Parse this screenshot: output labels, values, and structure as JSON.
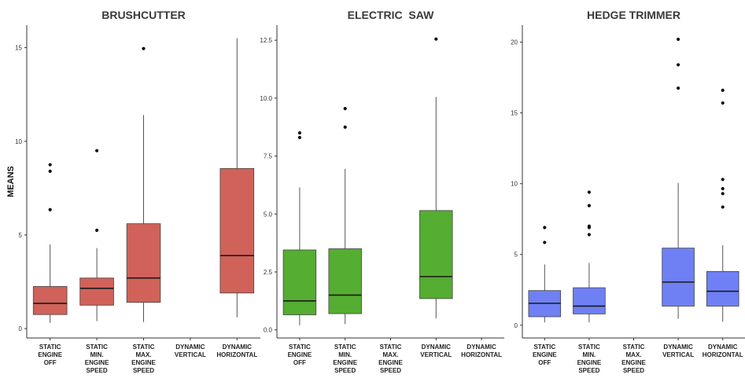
{
  "ylabel": "MEANS",
  "colors": {
    "brushcutter": "#d0625a",
    "electric_saw": "#55ad32",
    "hedge_trimmer": "#6f80f5",
    "axis": "#333333",
    "outlier": "#111111"
  },
  "chart_data": [
    {
      "type": "boxplot",
      "title": "BRUSHCUTTER",
      "ylabel": "MEANS",
      "ylim": [
        -0.5,
        16.2
      ],
      "yticks": [
        0,
        5,
        10,
        15
      ],
      "categories": [
        [
          "STATIC",
          "ENGINE",
          "OFF"
        ],
        [
          "STATIC",
          "MIN.",
          "ENGINE",
          "SPEED"
        ],
        [
          "STATIC",
          "MAX.",
          "ENGINE",
          "SPEED"
        ],
        [
          "DYNAMIC",
          "VERTICAL"
        ],
        [
          "DYNAMIC",
          "HORIZONTAL"
        ]
      ],
      "boxes": [
        {
          "min": 0.3,
          "q1": 0.75,
          "median": 1.35,
          "q3": 2.25,
          "max": 4.5,
          "outliers": [
            6.35,
            8.4,
            8.75
          ]
        },
        {
          "min": 0.4,
          "q1": 1.25,
          "median": 2.15,
          "q3": 2.7,
          "max": 4.3,
          "outliers": [
            5.25,
            9.5
          ]
        },
        {
          "min": 0.35,
          "q1": 1.4,
          "median": 2.7,
          "q3": 5.6,
          "max": 11.4,
          "outliers": [
            14.95
          ]
        },
        null,
        {
          "min": 0.6,
          "q1": 1.9,
          "median": 3.9,
          "q3": 8.55,
          "max": 15.5,
          "outliers": []
        }
      ]
    },
    {
      "type": "boxplot",
      "title": "ELECTRIC  SAW",
      "ylim": [
        -0.35,
        13.15
      ],
      "yticks": [
        0.0,
        2.5,
        5.0,
        7.5,
        10.0,
        12.5
      ],
      "ytick_labels": [
        "0.0",
        "2.5",
        "5.0",
        "7.5",
        "10.0",
        "12.5"
      ],
      "categories": [
        [
          "STATIC",
          "ENGINE",
          "OFF"
        ],
        [
          "STATIC",
          "MIN.",
          "ENGINE",
          "SPEED"
        ],
        [
          "STATIC",
          "MAX.",
          "ENGINE",
          "SPEED"
        ],
        [
          "DYNAMIC",
          "VERTICAL"
        ],
        [
          "DYNAMIC",
          "HORIZONTAL"
        ]
      ],
      "boxes": [
        {
          "min": 0.2,
          "q1": 0.65,
          "median": 1.25,
          "q3": 3.45,
          "max": 6.15,
          "outliers": [
            8.3,
            8.5
          ]
        },
        {
          "min": 0.25,
          "q1": 0.7,
          "median": 1.5,
          "q3": 3.5,
          "max": 6.95,
          "outliers": [
            8.75,
            9.55
          ]
        },
        null,
        {
          "min": 0.5,
          "q1": 1.35,
          "median": 2.3,
          "q3": 5.15,
          "max": 10.05,
          "outliers": [
            12.55
          ]
        },
        null
      ]
    },
    {
      "type": "boxplot",
      "title": "HEDGE TRIMMER",
      "ylim": [
        -0.9,
        21.2
      ],
      "yticks": [
        0,
        5,
        10,
        15,
        20
      ],
      "categories": [
        [
          "STATIC",
          "ENGINE",
          "OFF"
        ],
        [
          "STATIC",
          "MIN.",
          "ENGINE",
          "SPEED"
        ],
        [
          "STATIC",
          "MAX.",
          "ENGINE",
          "SPEED"
        ],
        [
          "DYNAMIC",
          "VERTICAL"
        ],
        [
          "DYNAMIC",
          "HORIZONTAL"
        ]
      ],
      "boxes": [
        {
          "min": 0.2,
          "q1": 0.6,
          "median": 1.55,
          "q3": 2.45,
          "max": 4.3,
          "outliers": [
            5.85,
            6.9
          ]
        },
        {
          "min": 0.2,
          "q1": 0.8,
          "median": 1.35,
          "q3": 2.65,
          "max": 4.4,
          "outliers": [
            6.4,
            6.9,
            7.0,
            8.45,
            9.4
          ]
        },
        null,
        {
          "min": 0.45,
          "q1": 1.35,
          "median": 3.05,
          "q3": 5.45,
          "max": 10.05,
          "outliers": [
            16.75,
            18.4,
            20.2
          ]
        },
        {
          "min": 0.25,
          "q1": 1.35,
          "median": 2.4,
          "q3": 3.8,
          "max": 5.65,
          "outliers": [
            8.35,
            9.3,
            9.65,
            10.3,
            15.7,
            16.6
          ]
        }
      ]
    }
  ]
}
